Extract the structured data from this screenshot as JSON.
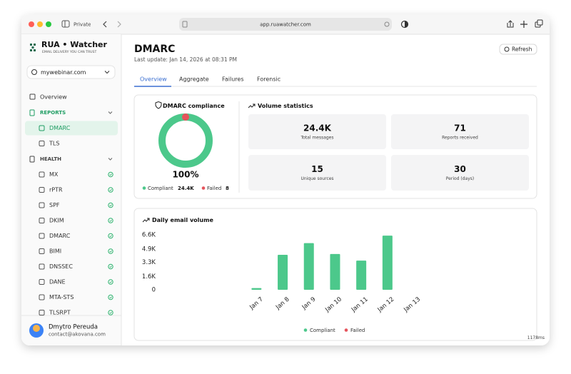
{
  "toolbar": {
    "private": "Private",
    "url": "app.ruawatcher.com"
  },
  "sidebar": {
    "brand": "RUA • Watcher",
    "tagline": "EMAIL DELIVERY YOU CAN TRUST",
    "domain": "mywebinar.com",
    "overview": "Overview",
    "sections": [
      {
        "title": "REPORTS",
        "items": [
          "DMARC",
          "TLS"
        ]
      },
      {
        "title": "HEALTH",
        "items": [
          "MX",
          "rPTR",
          "SPF",
          "DKIM",
          "DMARC",
          "BIMI",
          "DNSSEC",
          "DANE",
          "MTA-STS",
          "TLSRPT"
        ]
      }
    ],
    "user": {
      "name": "Dmytro Pereuda",
      "email": "contact@akovana.com"
    }
  },
  "header": {
    "title": "DMARC",
    "updated": "Last update: Jan 14, 2026 at 08:31 PM",
    "refresh": "Refresh"
  },
  "tabs": [
    "Overview",
    "Aggregate",
    "Failures",
    "Forensic"
  ],
  "compliance": {
    "title": "DMARC compliance",
    "percent": "100%",
    "series": [
      {
        "name": "Compliant",
        "value": 24400,
        "value_label": "24.4K",
        "color": "#4cc88b"
      },
      {
        "name": "Failed",
        "value": 8,
        "color": "#e5535b"
      }
    ]
  },
  "volume": {
    "title": "Volume statistics",
    "stats": [
      {
        "value": "24.4K",
        "label": "Total messages"
      },
      {
        "value": 71,
        "label": "Reports received"
      },
      {
        "value": 15,
        "label": "Unique sources"
      },
      {
        "value": 30,
        "label": "Period (days)"
      }
    ]
  },
  "chart_data": {
    "type": "bar",
    "title": "Daily email volume",
    "stacked": true,
    "categories": [
      "Jan 7",
      "Jan 8",
      "Jan 9",
      "Jan 10",
      "Jan 11",
      "Jan 12",
      "Jan 13"
    ],
    "series": [
      {
        "name": "Compliant",
        "color": "#4cc88b",
        "values": [
          200,
          4200,
          5600,
          4300,
          3500,
          6500,
          0
        ]
      },
      {
        "name": "Failed",
        "color": "#e5535b",
        "values": [
          0,
          0,
          0,
          0,
          0,
          0,
          0
        ]
      }
    ],
    "ylim": [
      0,
      6600
    ],
    "yticks": [
      0,
      {
        "value": 1600,
        "label": "1.6K"
      },
      {
        "value": 3300,
        "label": "3.3K"
      },
      {
        "value": 4900,
        "label": "4.9K"
      },
      {
        "value": 6600,
        "label": "6.6K"
      }
    ],
    "grid": false
  },
  "footer": {
    "timing": "1178ms"
  }
}
